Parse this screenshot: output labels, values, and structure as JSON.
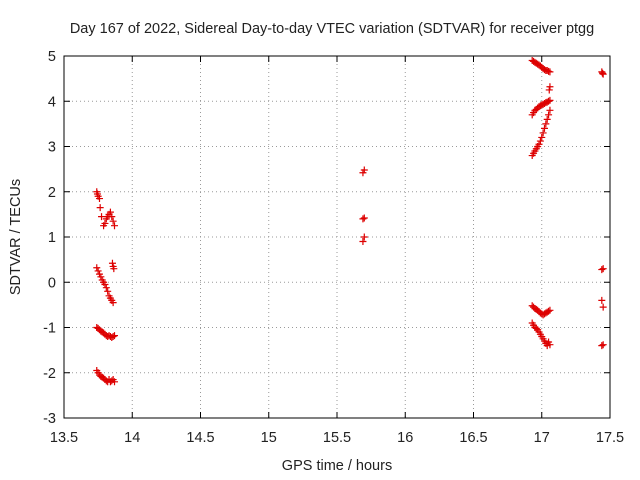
{
  "chart_data": {
    "type": "scatter",
    "title": "Day 167 of 2022, Sidereal Day-to-day VTEC variation (SDTVAR) for receiver ptgg",
    "xlabel": "GPS time / hours",
    "ylabel": "SDTVAR / TECUs",
    "xlim": [
      13.5,
      17.5
    ],
    "ylim": [
      -3,
      5
    ],
    "xticks": [
      "13.5",
      "14",
      "14.5",
      "15",
      "15.5",
      "16",
      "16.5",
      "17",
      "17.5"
    ],
    "yticks": [
      "-3",
      "-2",
      "-1",
      "0",
      "1",
      "2",
      "3",
      "4",
      "5"
    ],
    "grid": true,
    "marker": "+",
    "color": "#dd0000",
    "series": [
      {
        "name": "SDTVAR",
        "points": [
          [
            13.74,
            2.0
          ],
          [
            13.745,
            1.95
          ],
          [
            13.75,
            1.9
          ],
          [
            13.76,
            1.85
          ],
          [
            13.765,
            1.65
          ],
          [
            13.775,
            1.45
          ],
          [
            13.79,
            1.25
          ],
          [
            13.8,
            1.3
          ],
          [
            13.81,
            1.4
          ],
          [
            13.82,
            1.45
          ],
          [
            13.83,
            1.5
          ],
          [
            13.84,
            1.55
          ],
          [
            13.85,
            1.45
          ],
          [
            13.86,
            1.35
          ],
          [
            13.87,
            1.25
          ],
          [
            13.74,
            0.32
          ],
          [
            13.75,
            0.25
          ],
          [
            13.76,
            0.18
          ],
          [
            13.77,
            0.12
          ],
          [
            13.78,
            0.05
          ],
          [
            13.79,
            0.0
          ],
          [
            13.8,
            -0.05
          ],
          [
            13.81,
            -0.12
          ],
          [
            13.82,
            -0.2
          ],
          [
            13.83,
            -0.3
          ],
          [
            13.84,
            -0.35
          ],
          [
            13.85,
            -0.4
          ],
          [
            13.86,
            -0.45
          ],
          [
            13.855,
            0.42
          ],
          [
            13.86,
            0.35
          ],
          [
            13.865,
            0.3
          ],
          [
            13.74,
            -1.0
          ],
          [
            13.75,
            -1.02
          ],
          [
            13.76,
            -1.05
          ],
          [
            13.77,
            -1.08
          ],
          [
            13.78,
            -1.1
          ],
          [
            13.79,
            -1.12
          ],
          [
            13.8,
            -1.15
          ],
          [
            13.81,
            -1.18
          ],
          [
            13.82,
            -1.2
          ],
          [
            13.83,
            -1.18
          ],
          [
            13.84,
            -1.2
          ],
          [
            13.85,
            -1.22
          ],
          [
            13.86,
            -1.2
          ],
          [
            13.87,
            -1.18
          ],
          [
            13.74,
            -1.95
          ],
          [
            13.75,
            -2.0
          ],
          [
            13.76,
            -2.05
          ],
          [
            13.77,
            -2.08
          ],
          [
            13.78,
            -2.1
          ],
          [
            13.79,
            -2.12
          ],
          [
            13.8,
            -2.15
          ],
          [
            13.81,
            -2.18
          ],
          [
            13.82,
            -2.2
          ],
          [
            13.83,
            -2.15
          ],
          [
            13.84,
            -2.2
          ],
          [
            13.85,
            -2.18
          ],
          [
            13.86,
            -2.15
          ],
          [
            13.87,
            -2.2
          ],
          [
            15.69,
            2.42
          ],
          [
            15.7,
            2.48
          ],
          [
            15.69,
            1.4
          ],
          [
            15.7,
            1.42
          ],
          [
            15.69,
            0.9
          ],
          [
            15.7,
            1.0
          ],
          [
            16.93,
            4.9
          ],
          [
            16.94,
            4.88
          ],
          [
            16.95,
            4.86
          ],
          [
            16.96,
            4.84
          ],
          [
            16.97,
            4.82
          ],
          [
            16.98,
            4.8
          ],
          [
            16.99,
            4.78
          ],
          [
            17.0,
            4.75
          ],
          [
            17.01,
            4.72
          ],
          [
            17.02,
            4.7
          ],
          [
            17.03,
            4.68
          ],
          [
            17.04,
            4.68
          ],
          [
            17.05,
            4.66
          ],
          [
            17.06,
            4.65
          ],
          [
            16.93,
            3.7
          ],
          [
            16.94,
            3.75
          ],
          [
            16.95,
            3.8
          ],
          [
            16.96,
            3.82
          ],
          [
            16.97,
            3.85
          ],
          [
            16.98,
            3.88
          ],
          [
            16.99,
            3.9
          ],
          [
            17.0,
            3.92
          ],
          [
            17.01,
            3.93
          ],
          [
            17.02,
            3.95
          ],
          [
            17.03,
            3.97
          ],
          [
            17.04,
            3.98
          ],
          [
            17.05,
            4.0
          ],
          [
            17.06,
            4.02
          ],
          [
            17.055,
            4.25
          ],
          [
            17.06,
            4.32
          ],
          [
            16.93,
            2.8
          ],
          [
            16.94,
            2.85
          ],
          [
            16.95,
            2.9
          ],
          [
            16.96,
            2.95
          ],
          [
            16.97,
            3.0
          ],
          [
            16.98,
            3.05
          ],
          [
            16.99,
            3.12
          ],
          [
            17.0,
            3.2
          ],
          [
            17.01,
            3.3
          ],
          [
            17.02,
            3.4
          ],
          [
            17.03,
            3.5
          ],
          [
            17.04,
            3.6
          ],
          [
            17.05,
            3.7
          ],
          [
            17.06,
            3.8
          ],
          [
            16.93,
            -0.52
          ],
          [
            16.94,
            -0.55
          ],
          [
            16.95,
            -0.58
          ],
          [
            16.96,
            -0.6
          ],
          [
            16.97,
            -0.62
          ],
          [
            16.98,
            -0.65
          ],
          [
            16.99,
            -0.68
          ],
          [
            17.0,
            -0.7
          ],
          [
            17.01,
            -0.72
          ],
          [
            17.02,
            -0.7
          ],
          [
            17.03,
            -0.68
          ],
          [
            17.04,
            -0.66
          ],
          [
            17.05,
            -0.64
          ],
          [
            17.06,
            -0.62
          ],
          [
            16.93,
            -0.9
          ],
          [
            16.94,
            -0.95
          ],
          [
            16.95,
            -1.0
          ],
          [
            16.96,
            -1.02
          ],
          [
            16.97,
            -1.05
          ],
          [
            16.98,
            -1.1
          ],
          [
            16.99,
            -1.15
          ],
          [
            17.0,
            -1.2
          ],
          [
            17.01,
            -1.25
          ],
          [
            17.02,
            -1.3
          ],
          [
            17.03,
            -1.35
          ],
          [
            17.04,
            -1.4
          ],
          [
            17.05,
            -1.32
          ],
          [
            17.06,
            -1.38
          ],
          [
            17.44,
            4.65
          ],
          [
            17.45,
            4.6
          ],
          [
            17.445,
            4.62
          ],
          [
            17.44,
            0.28
          ],
          [
            17.45,
            0.3
          ],
          [
            17.44,
            -0.4
          ],
          [
            17.45,
            -0.55
          ],
          [
            17.44,
            -1.4
          ],
          [
            17.45,
            -1.38
          ]
        ]
      }
    ]
  }
}
